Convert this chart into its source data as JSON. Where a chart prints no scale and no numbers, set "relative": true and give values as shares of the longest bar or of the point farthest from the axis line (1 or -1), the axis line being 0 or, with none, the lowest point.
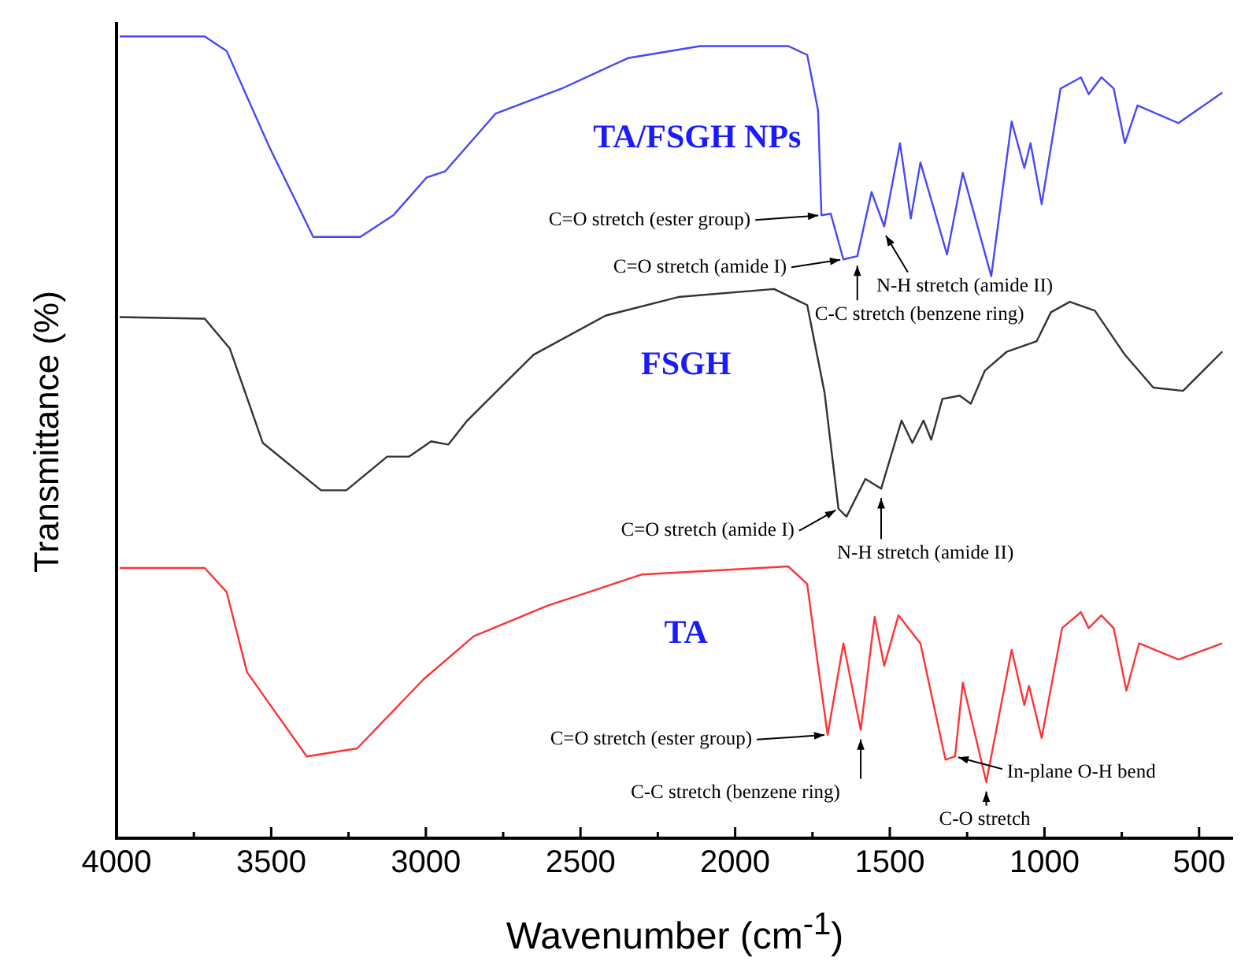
{
  "chart_data": {
    "type": "line",
    "relative": true,
    "xlabel": "Wavenumber (cm$^{-1}$)",
    "ylabel": "Transmittance (%)",
    "xlim": [
      4000,
      390
    ],
    "xticks": [
      4000,
      {
        "value": 3750,
        "label": null
      },
      3500,
      {
        "value": 3250,
        "label": null
      },
      3000,
      {
        "value": 2750,
        "label": null
      },
      2500,
      {
        "value": 2250,
        "label": null
      },
      2000,
      {
        "value": 1750,
        "label": null
      },
      1500,
      {
        "value": 1250,
        "label": null
      },
      1000,
      {
        "value": 750,
        "label": null
      },
      500
    ],
    "grid": false,
    "marker": "none",
    "line_style": "solid",
    "series": [
      {
        "name": "TA/FSGH NPs",
        "color": "#4646ff",
        "x": [
          3990,
          3715,
          3644,
          3507,
          3364,
          3212,
          3105,
          2998,
          2937,
          2774,
          2561,
          2347,
          2113,
          1828,
          1767,
          1732,
          1721,
          1691,
          1650,
          1605,
          1559,
          1518,
          1467,
          1432,
          1401,
          1315,
          1264,
          1172,
          1106,
          1065,
          1045,
          1009,
          948,
          882,
          857,
          816,
          776,
          740,
          699,
          567,
          425
        ],
        "values": [
          1.0,
          1.0,
          0.982,
          0.863,
          0.75,
          0.75,
          0.777,
          0.824,
          0.832,
          0.904,
          0.935,
          0.973,
          0.988,
          0.988,
          0.977,
          0.908,
          0.777,
          0.779,
          0.722,
          0.726,
          0.806,
          0.763,
          0.867,
          0.773,
          0.843,
          0.728,
          0.83,
          0.701,
          0.894,
          0.836,
          0.867,
          0.791,
          0.935,
          0.949,
          0.928,
          0.949,
          0.935,
          0.867,
          0.914,
          0.892,
          0.93
        ]
      },
      {
        "name": "FSGH",
        "color": "#333333",
        "x": [
          3990,
          3715,
          3634,
          3527,
          3339,
          3257,
          3125,
          3054,
          2983,
          2927,
          2866,
          2652,
          2418,
          2184,
          1874,
          1767,
          1711,
          1666,
          1640,
          1579,
          1528,
          1462,
          1427,
          1391,
          1366,
          1330,
          1274,
          1238,
          1193,
          1121,
          1025,
          979,
          918,
          837,
          740,
          648,
          552,
          425
        ],
        "values": [
          0.65,
          0.648,
          0.611,
          0.493,
          0.434,
          0.434,
          0.476,
          0.476,
          0.495,
          0.491,
          0.521,
          0.603,
          0.652,
          0.675,
          0.685,
          0.665,
          0.556,
          0.411,
          0.401,
          0.448,
          0.436,
          0.521,
          0.493,
          0.521,
          0.497,
          0.548,
          0.552,
          0.542,
          0.583,
          0.607,
          0.62,
          0.656,
          0.669,
          0.658,
          0.603,
          0.562,
          0.558,
          0.607
        ]
      },
      {
        "name": "TA",
        "color": "#ff3333",
        "x": [
          3990,
          3715,
          3644,
          3578,
          3385,
          3222,
          3008,
          2845,
          2607,
          2301,
          1828,
          1767,
          1732,
          1701,
          1650,
          1594,
          1549,
          1518,
          1472,
          1401,
          1320,
          1289,
          1264,
          1188,
          1106,
          1065,
          1050,
          1009,
          943,
          882,
          857,
          816,
          776,
          735,
          694,
          567,
          425
        ],
        "values": [
          0.337,
          0.337,
          0.307,
          0.207,
          0.102,
          0.112,
          0.198,
          0.252,
          0.29,
          0.329,
          0.339,
          0.317,
          0.215,
          0.129,
          0.243,
          0.135,
          0.276,
          0.215,
          0.278,
          0.243,
          0.098,
          0.102,
          0.194,
          0.07,
          0.235,
          0.166,
          0.19,
          0.125,
          0.262,
          0.282,
          0.262,
          0.278,
          0.262,
          0.184,
          0.243,
          0.223,
          0.243
        ]
      }
    ],
    "annotations": [
      {
        "text": "C=O stretch (ester group)",
        "x": 1721,
        "y": 0.777
      },
      {
        "text": "C=O stretch (amide I)",
        "x": 1650,
        "y": 0.722
      },
      {
        "text": "C-C stretch (benzene ring)",
        "x": 1605,
        "y": 0.726
      },
      {
        "text": "N-H stretch (amide II)",
        "x": 1518,
        "y": 0.763
      },
      {
        "text": "C=O stretch (amide I)",
        "x": 1666,
        "y": 0.411
      },
      {
        "text": "N-H stretch (amide II)",
        "x": 1528,
        "y": 0.436
      },
      {
        "text": "C=O stretch (ester group)",
        "x": 1701,
        "y": 0.129
      },
      {
        "text": "C-C stretch (benzene ring)",
        "x": 1594,
        "y": 0.135
      },
      {
        "text": "In-plane O-H bend",
        "x": 1289,
        "y": 0.102
      },
      {
        "text": "C-O stretch",
        "x": 1188,
        "y": 0.07
      }
    ]
  }
}
